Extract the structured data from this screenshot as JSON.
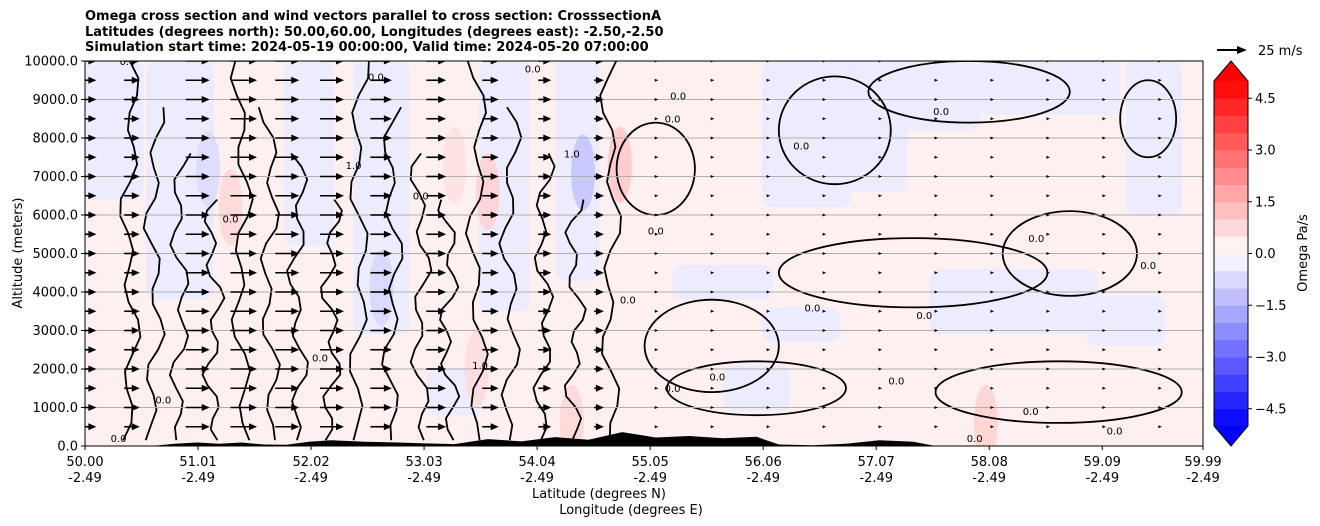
{
  "chart_data": {
    "type": "heatmap",
    "title_lines": [
      "Omega cross section and wind vectors parallel to cross section: CrosssectionA",
      "Latitudes (degrees north): 50.00,60.00, Longitudes (degrees east): -2.50,-2.50",
      "Simulation start time: 2024-05-19 00:00:00, Valid time: 2024-05-20 07:00:00"
    ],
    "ylabel": "Altitude (meters)",
    "xlabel": "Latitude (degrees N)",
    "xlabel2": "Longitude (degrees E)",
    "ylim": [
      0,
      10000
    ],
    "xlim": [
      50.0,
      59.99
    ],
    "y_ticks": [
      {
        "value": 0,
        "label": "0.0"
      },
      {
        "value": 1000,
        "label": "1000.0"
      },
      {
        "value": 2000,
        "label": "2000.0"
      },
      {
        "value": 3000,
        "label": "3000.0"
      },
      {
        "value": 4000,
        "label": "4000.0"
      },
      {
        "value": 5000,
        "label": "5000.0"
      },
      {
        "value": 6000,
        "label": "6000.0"
      },
      {
        "value": 7000,
        "label": "7000.0"
      },
      {
        "value": 8000,
        "label": "8000.0"
      },
      {
        "value": 9000,
        "label": "9000.0"
      },
      {
        "value": 10000,
        "label": "10000.0"
      }
    ],
    "x_ticks": [
      {
        "value": 50.0,
        "lat": "50.00",
        "lon": "-2.49"
      },
      {
        "value": 51.01,
        "lat": "51.01",
        "lon": "-2.49"
      },
      {
        "value": 52.02,
        "lat": "52.02",
        "lon": "-2.49"
      },
      {
        "value": 53.03,
        "lat": "53.03",
        "lon": "-2.49"
      },
      {
        "value": 54.04,
        "lat": "54.04",
        "lon": "-2.49"
      },
      {
        "value": 55.05,
        "lat": "55.05",
        "lon": "-2.49"
      },
      {
        "value": 56.06,
        "lat": "56.06",
        "lon": "-2.49"
      },
      {
        "value": 57.07,
        "lat": "57.07",
        "lon": "-2.49"
      },
      {
        "value": 58.08,
        "lat": "58.08",
        "lon": "-2.49"
      },
      {
        "value": 59.09,
        "lat": "59.09",
        "lon": "-2.49"
      },
      {
        "value": 59.99,
        "lat": "59.99",
        "lon": "-2.49"
      }
    ],
    "horizontal_grid": true,
    "colorbar": {
      "label": "Omega Pa/s",
      "range": [
        -5.0,
        5.0
      ],
      "extend": "both",
      "ticks": [
        {
          "value": 4.5,
          "label": "4.5"
        },
        {
          "value": 3.0,
          "label": "3.0"
        },
        {
          "value": 1.5,
          "label": "1.5"
        },
        {
          "value": 0.0,
          "label": "0.0"
        },
        {
          "value": -1.5,
          "label": "−1.5"
        },
        {
          "value": -3.0,
          "label": "−3.0"
        },
        {
          "value": -4.5,
          "label": "−4.5"
        }
      ],
      "color_min": "#0000ff",
      "color_mid": "#ffffff",
      "color_max": "#ff0000"
    },
    "quiver_key": {
      "label": "25 m/s",
      "speed": 25
    },
    "wind": {
      "lat_centers": [
        50.0,
        50.35,
        50.9,
        51.3,
        51.7,
        52.1,
        52.55,
        53.05,
        53.55,
        54.05,
        54.55,
        55.1,
        55.6,
        56.1,
        56.6,
        57.1,
        57.6,
        58.1,
        58.6,
        59.1,
        59.6
      ],
      "levels_m": [
        10000,
        9500,
        9000,
        8500,
        8000,
        7500,
        7000,
        6500,
        6000,
        5500,
        5000,
        4500,
        4000,
        3500,
        3000,
        2500,
        2000,
        1500,
        1000,
        500
      ],
      "speed_by_column_ms": [
        10,
        15,
        25,
        28,
        25,
        25,
        22,
        20,
        16,
        12,
        8,
        4,
        3,
        3,
        2,
        2,
        2,
        1,
        1,
        2,
        2
      ]
    },
    "omega_features": [
      {
        "lat": 53.6,
        "alt": 6600,
        "omega": 0.9
      },
      {
        "lat": 54.45,
        "alt": 7100,
        "omega": -1.2
      },
      {
        "lat": 54.78,
        "alt": 7300,
        "omega": 1.1
      },
      {
        "lat": 51.1,
        "alt": 7200,
        "omega": -0.7
      },
      {
        "lat": 51.3,
        "alt": 6200,
        "omega": 0.8
      },
      {
        "lat": 52.65,
        "alt": 4100,
        "omega": -0.8
      },
      {
        "lat": 53.3,
        "alt": 7300,
        "omega": 0.6
      },
      {
        "lat": 58.05,
        "alt": 600,
        "omega": 0.9
      },
      {
        "lat": 54.35,
        "alt": 600,
        "omega": 0.8
      },
      {
        "lat": 53.5,
        "alt": 2000,
        "omega": 0.7
      }
    ],
    "contour_labels": [
      {
        "text": "0.0",
        "lat": 50.38,
        "alt": 9900
      },
      {
        "text": "0.0",
        "lat": 52.6,
        "alt": 9500
      },
      {
        "text": "0.0",
        "lat": 54.0,
        "alt": 9700
      },
      {
        "text": "0.0",
        "lat": 55.3,
        "alt": 9000
      },
      {
        "text": "0.0",
        "lat": 57.65,
        "alt": 8600
      },
      {
        "text": "0.0",
        "lat": 55.25,
        "alt": 8400
      },
      {
        "text": "0.0",
        "lat": 56.4,
        "alt": 7700
      },
      {
        "text": "0.0",
        "lat": 58.5,
        "alt": 5300
      },
      {
        "text": "0.0",
        "lat": 55.1,
        "alt": 5500
      },
      {
        "text": "0.0",
        "lat": 53.0,
        "alt": 6400
      },
      {
        "text": "0.0",
        "lat": 51.3,
        "alt": 5800
      },
      {
        "text": "0.0",
        "lat": 54.85,
        "alt": 3700
      },
      {
        "text": "0.0",
        "lat": 56.5,
        "alt": 3500
      },
      {
        "text": "0.0",
        "lat": 57.5,
        "alt": 3300
      },
      {
        "text": "0.0",
        "lat": 59.5,
        "alt": 4600
      },
      {
        "text": "0.0",
        "lat": 52.1,
        "alt": 2200
      },
      {
        "text": "0.0",
        "lat": 55.65,
        "alt": 1700
      },
      {
        "text": "0.0",
        "lat": 57.25,
        "alt": 1600
      },
      {
        "text": "0.0",
        "lat": 58.45,
        "alt": 800
      },
      {
        "text": "0.0",
        "lat": 50.7,
        "alt": 1100
      },
      {
        "text": "0.0",
        "lat": 55.25,
        "alt": 1400
      },
      {
        "text": "0.0",
        "lat": 59.2,
        "alt": 300
      },
      {
        "text": "0.0",
        "lat": 57.95,
        "alt": 100
      },
      {
        "text": "1.0",
        "lat": 53.53,
        "alt": 2000
      },
      {
        "text": "1.0",
        "lat": 54.35,
        "alt": 7500
      },
      {
        "text": "1.0",
        "lat": 52.4,
        "alt": 7200
      },
      {
        "text": "0.0",
        "lat": 50.3,
        "alt": 100
      }
    ]
  }
}
